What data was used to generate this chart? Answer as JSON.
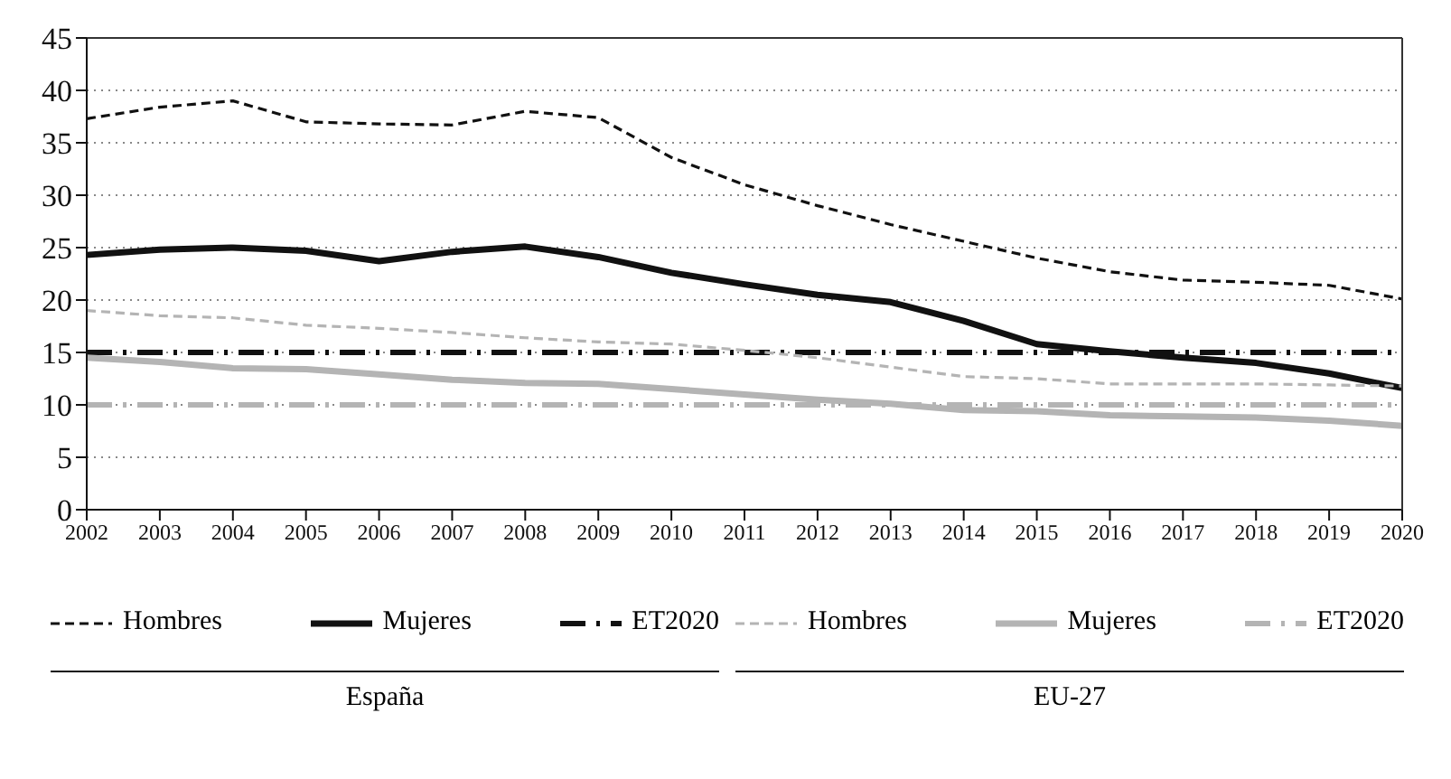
{
  "chart_data": {
    "type": "line",
    "categories": [
      "2002",
      "2003",
      "2004",
      "2005",
      "2006",
      "2007",
      "2008",
      "2009",
      "2010",
      "2011",
      "2012",
      "2013",
      "2014",
      "2015",
      "2016",
      "2017",
      "2018",
      "2019",
      "2020"
    ],
    "series": [
      {
        "name": "Hombres",
        "color": "#111111",
        "line_style": "dashed",
        "values": [
          37.3,
          38.4,
          39.0,
          37.0,
          36.8,
          36.7,
          38.0,
          37.4,
          33.6,
          31.0,
          29.0,
          27.2,
          25.6,
          24.0,
          22.7,
          21.9,
          21.7,
          21.4,
          20.1
        ]
      },
      {
        "name": "Mujeres",
        "color": "#111111",
        "line_style": "solid",
        "values": [
          24.3,
          24.8,
          25.0,
          24.7,
          23.7,
          24.6,
          25.1,
          24.1,
          22.6,
          21.5,
          20.5,
          19.8,
          18.0,
          15.8,
          15.1,
          14.5,
          14.0,
          13.0,
          11.6
        ]
      },
      {
        "name": "ET2020",
        "color": "#111111",
        "line_style": "dashed",
        "values": [
          15,
          15,
          15,
          15,
          15,
          15,
          15,
          15,
          15,
          15,
          15,
          15,
          15,
          15,
          15,
          15,
          15,
          15,
          15
        ]
      },
      {
        "name": "Hombres",
        "color": "#b4b4b4",
        "line_style": "dashed",
        "values": [
          19.0,
          18.5,
          18.3,
          17.6,
          17.3,
          16.9,
          16.4,
          16.0,
          15.8,
          15.2,
          14.5,
          13.6,
          12.7,
          12.5,
          12.0,
          12.0,
          12.0,
          11.9,
          11.8
        ]
      },
      {
        "name": "Mujeres",
        "color": "#b4b4b4",
        "line_style": "solid",
        "values": [
          14.5,
          14.1,
          13.5,
          13.4,
          12.9,
          12.4,
          12.1,
          12.0,
          11.5,
          11.0,
          10.5,
          10.1,
          9.5,
          9.4,
          9.0,
          8.9,
          8.8,
          8.5,
          8.0
        ]
      },
      {
        "name": "ET2020",
        "color": "#b4b4b4",
        "line_style": "dashed",
        "values": [
          10,
          10,
          10,
          10,
          10,
          10,
          10,
          10,
          10,
          10,
          10,
          10,
          10,
          10,
          10,
          10,
          10,
          10,
          10
        ]
      }
    ],
    "ylim": [
      0,
      45
    ],
    "yticks": [
      0,
      5,
      10,
      15,
      20,
      25,
      30,
      35,
      40,
      45
    ],
    "grid": "y",
    "legend": "bottom",
    "marker": "none",
    "annotations": [
      "España",
      "EU-27"
    ]
  }
}
